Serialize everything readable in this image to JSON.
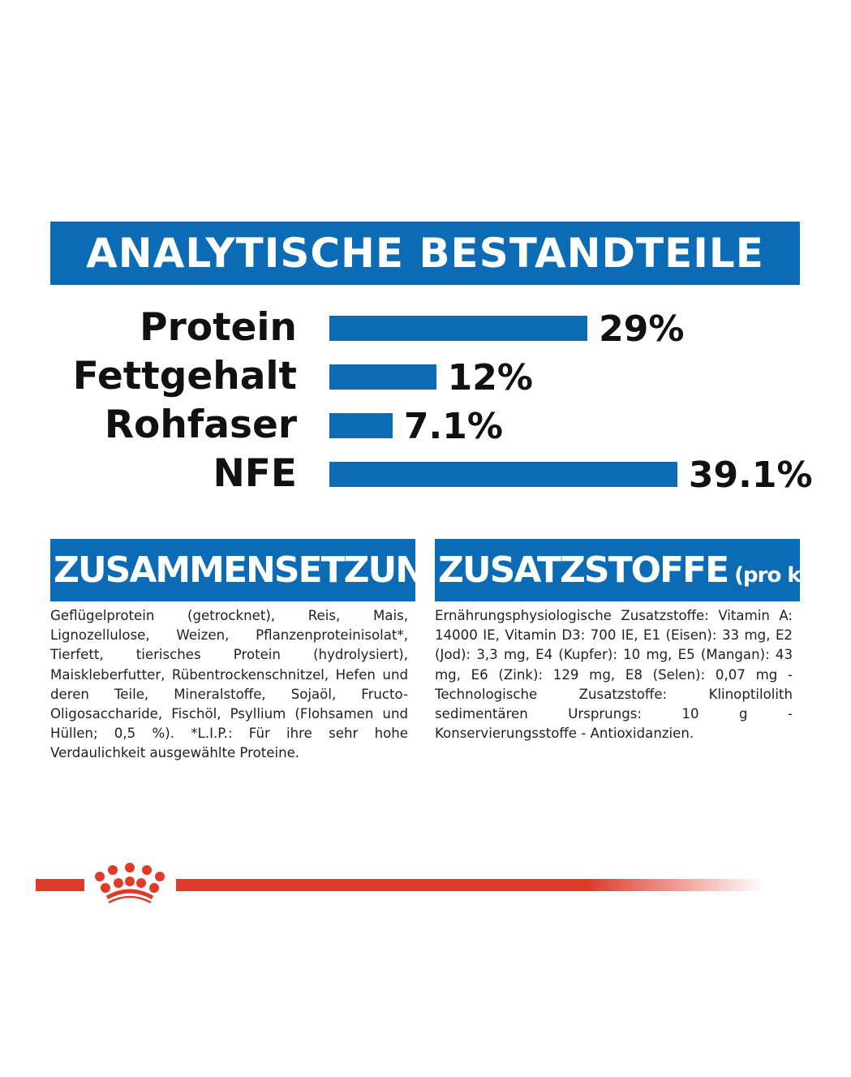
{
  "title": "ANALYTISCHE BESTANDTEILE",
  "chart_data": {
    "type": "bar",
    "orientation": "horizontal",
    "title": "ANALYTISCHE BESTANDTEILE",
    "categories": [
      "Protein",
      "Fettgehalt",
      "Rohfaser",
      "NFE"
    ],
    "values": [
      29,
      12,
      7.1,
      39.1
    ],
    "value_labels": [
      "29%",
      "12%",
      "7.1%",
      "39.1%"
    ],
    "unit": "%",
    "xlim": [
      0,
      40
    ],
    "grid": false,
    "color": "#0b6bb5"
  },
  "composition": {
    "heading": "ZUSAMMENSETZUNG",
    "text": "Geflügelprotein (getrocknet), Reis, Mais, Lignozellulose, Weizen, Pflanzenproteinisolat*, Tierfett, tierisches Protein (hydrolysiert), Maiskleberfutter, Rübentrockenschnitzel, Hefen und deren Teile, Mineralstoffe, Sojaöl, Fructo-Oligosaccharide, Fischöl, Psyllium (Flohsamen und Hüllen; 0,5 %). *L.I.P.: Für ihre sehr hohe Verdaulichkeit ausgewählte Proteine."
  },
  "additives": {
    "heading": "ZUSATZSTOFFE",
    "heading_suffix": "(pro kg)",
    "text": "Ernährungsphysiologische Zusatzstoffe: Vitamin A: 14000 IE, Vitamin D3: 700 IE, E1 (Eisen): 33 mg, E2 (Jod): 3,3 mg, E4 (Kupfer): 10 mg, E5 (Mangan): 43 mg, E6 (Zink): 129 mg, E8 (Selen): 0,07 mg - Technologische Zusatzstoffe: Klinoptilolith sedimentären Ursprungs: 10 g - Konservierungsstoffe - Antioxidanzien."
  },
  "colors": {
    "brand_blue": "#0b6bb5",
    "brand_red": "#e03a2a"
  }
}
